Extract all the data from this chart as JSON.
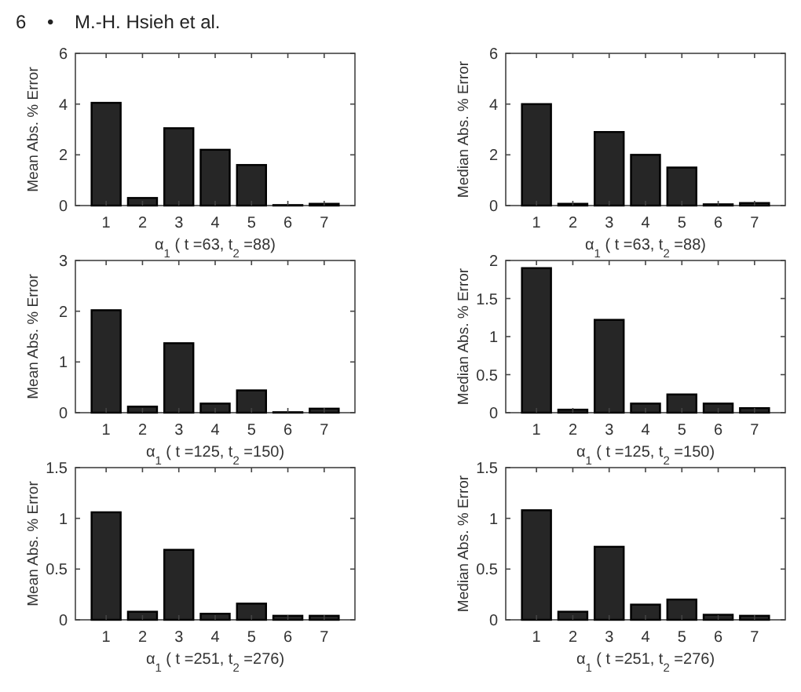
{
  "chart_data": [
    {
      "type": "bar",
      "annotations": [
        "6    •    M.-H. Hsieh et al."
      ],
      "ylabel": "Mean Abs. % Error",
      "xlabel": "α$_{1}$ ( t =63, t$_{2}$ =88)",
      "categories": [
        "1",
        "2",
        "3",
        "4",
        "5",
        "6",
        "7"
      ],
      "values": [
        4.05,
        0.3,
        3.05,
        2.2,
        1.6,
        0.02,
        0.07
      ],
      "color": "#262626",
      "ylim": [
        0,
        6
      ],
      "yticks": [
        0,
        2,
        4,
        6
      ]
    },
    {
      "type": "bar",
      "ylabel": "Median Abs. % Error",
      "xlabel": "α$_{1}$ ( t =63, t$_{2}$ =88)",
      "categories": [
        "1",
        "2",
        "3",
        "4",
        "5",
        "6",
        "7"
      ],
      "values": [
        4.0,
        0.07,
        2.9,
        2.0,
        1.5,
        0.05,
        0.1
      ],
      "color": "#262626",
      "ylim": [
        0,
        6
      ],
      "yticks": [
        0,
        2,
        4,
        6
      ]
    },
    {
      "type": "bar",
      "ylabel": "Mean Abs. % Error",
      "xlabel": "α$_{1}$ ( t =125, t$_{2}$ =150)",
      "categories": [
        "1",
        "2",
        "3",
        "4",
        "5",
        "6",
        "7"
      ],
      "values": [
        2.02,
        0.12,
        1.37,
        0.18,
        0.44,
        0.01,
        0.08
      ],
      "color": "#262626",
      "ylim": [
        0,
        3
      ],
      "yticks": [
        0,
        1,
        2,
        3
      ]
    },
    {
      "type": "bar",
      "ylabel": "Median Abs. % Error",
      "xlabel": "α$_{1}$ ( t =125, t$_{2}$ =150)",
      "categories": [
        "1",
        "2",
        "3",
        "4",
        "5",
        "6",
        "7"
      ],
      "values": [
        1.9,
        0.04,
        1.22,
        0.12,
        0.24,
        0.12,
        0.06
      ],
      "color": "#262626",
      "ylim": [
        0,
        2
      ],
      "yticks": [
        0,
        0.5,
        1,
        1.5,
        2
      ]
    },
    {
      "type": "bar",
      "ylabel": "Mean Abs. % Error",
      "xlabel": "α$_{1}$ ( t =251, t$_{2}$ =276)",
      "categories": [
        "1",
        "2",
        "3",
        "4",
        "5",
        "6",
        "7"
      ],
      "values": [
        1.06,
        0.08,
        0.69,
        0.06,
        0.16,
        0.04,
        0.04
      ],
      "color": "#262626",
      "ylim": [
        0,
        1.5
      ],
      "yticks": [
        0,
        0.5,
        1,
        1.5
      ]
    },
    {
      "type": "bar",
      "ylabel": "Median Abs. % Error",
      "xlabel": "α$_{1}$ ( t =251, t$_{2}$ =276)",
      "categories": [
        "1",
        "2",
        "3",
        "4",
        "5",
        "6",
        "7"
      ],
      "values": [
        1.08,
        0.08,
        0.72,
        0.15,
        0.2,
        0.05,
        0.04
      ],
      "color": "#262626",
      "ylim": [
        0,
        1.5
      ],
      "yticks": [
        0,
        0.5,
        1,
        1.5
      ]
    }
  ]
}
